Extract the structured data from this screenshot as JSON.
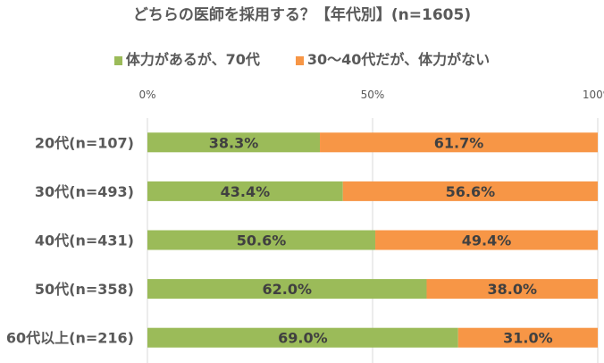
{
  "chart_data": {
    "type": "bar",
    "stacked": true,
    "orientation": "horizontal",
    "title": "どちらの医師を採用する？【年代別】(n=1605)",
    "categories": [
      "20代(n=107)",
      "30代(n=493)",
      "40代(n=431)",
      "50代(n=358)",
      "60代以上(n=216)"
    ],
    "series": [
      {
        "name": "体力があるが、70代",
        "color": "#9BBB59",
        "values": [
          38.3,
          43.4,
          50.6,
          62.0,
          69.0
        ],
        "labels": [
          "38.3%",
          "43.4%",
          "50.6%",
          "62.0%",
          "69.0%"
        ]
      },
      {
        "name": "30～40代だが、体力がない",
        "color": "#F79646",
        "values": [
          61.7,
          56.6,
          49.4,
          38.0,
          31.0
        ],
        "labels": [
          "61.7%",
          "56.6%",
          "49.4%",
          "38.0%",
          "31.0%"
        ]
      }
    ],
    "xlim": [
      0,
      100
    ],
    "xticks": [
      "0%",
      "50%",
      "100%"
    ],
    "legend": "top",
    "grid": true
  }
}
